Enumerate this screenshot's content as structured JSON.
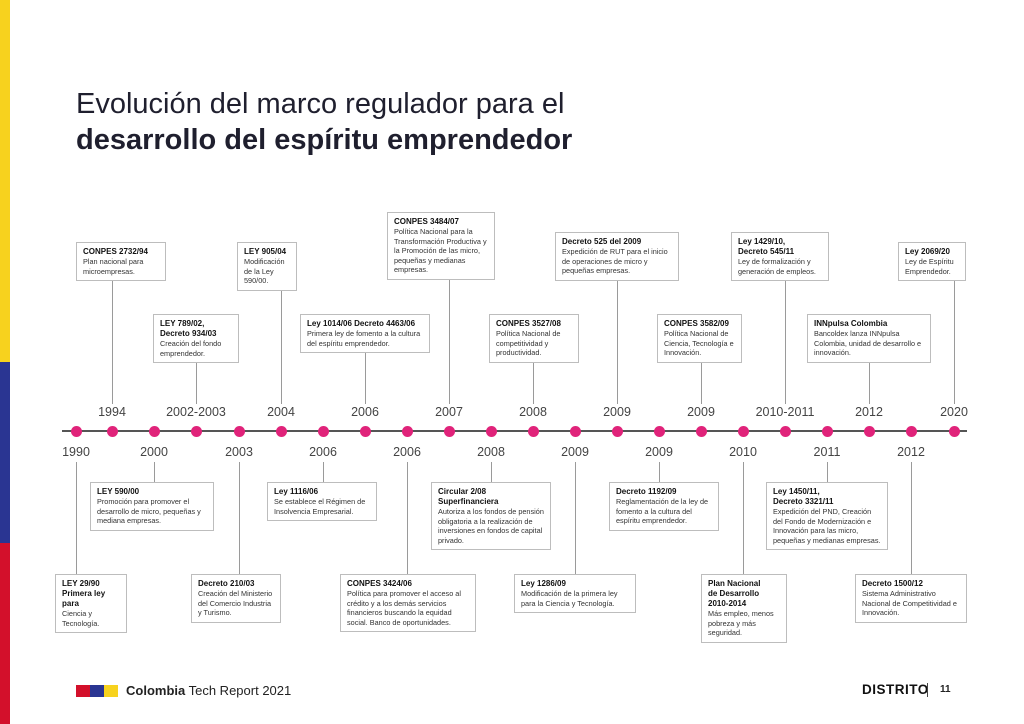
{
  "title": {
    "line1": "Evolución del marco regulador para el",
    "line2": "desarrollo del espíritu emprendedor"
  },
  "years_above": [
    "1994",
    "2002-2003",
    "2004",
    "2006",
    "2007",
    "2008",
    "2009",
    "2009",
    "2010-2011",
    "2012",
    "2020"
  ],
  "years_below": [
    "1990",
    "2000",
    "2003",
    "2006",
    "2006",
    "2008",
    "2009",
    "2009",
    "2010",
    "2011",
    "2012"
  ],
  "cards_above": [
    {
      "heading": "CONPES 2732/94",
      "text": "Plan nacional para microempresas."
    },
    {
      "heading": "LEY 789/02,\nDecreto 934/03",
      "text": "Creación del fondo emprendedor."
    },
    {
      "heading": "LEY 905/04",
      "text": "Modificación de la Ley 590/00."
    },
    {
      "heading": "Ley 1014/06 Decreto 4463/06",
      "text": "Primera ley de fomento a la cultura del espíritu emprendedor."
    },
    {
      "heading": "CONPES 3484/07",
      "text": "Política Nacional para la Transformación Productiva y la Promoción de las micro, pequeñas y medianas empresas."
    },
    {
      "heading": "CONPES 3527/08",
      "text": "Política Nacional de competitividad y productividad."
    },
    {
      "heading": "Decreto 525 del 2009",
      "text": "Expedición de RUT para el inicio de operaciones de micro y pequeñas empresas."
    },
    {
      "heading": "CONPES 3582/09",
      "text": "Política Nacional de Ciencia, Tecnología e Innovación."
    },
    {
      "heading": "Ley 1429/10,\nDecreto 545/11",
      "text": "Ley de formalización y generación de empleos."
    },
    {
      "heading": "INNpulsa Colombia",
      "text": "Bancoldex lanza INNpulsa Colombia, unidad de desarrollo e innovación."
    },
    {
      "heading": "Ley 2069/20",
      "text": "Ley de Espíritu Emprendedor."
    }
  ],
  "cards_below": [
    {
      "heading": "LEY 29/90\nPrimera ley para",
      "text": "Ciencia y Tecnología."
    },
    {
      "heading": "LEY 590/00",
      "text": "Promoción para promover el desarrollo de micro, pequeñas y mediana empresas."
    },
    {
      "heading": "Decreto 210/03",
      "text": "Creación del Ministerio del Comercio Industria y Turismo."
    },
    {
      "heading": "Ley 1116/06",
      "text": "Se establece el Régimen de Insolvencia Empresarial."
    },
    {
      "heading": "CONPES 3424/06",
      "text": "Política para promover el acceso al crédito y a los demás servicios financieros buscando la equidad social. Banco de oportunidades."
    },
    {
      "heading": "Circular 2/08\nSuperfinanciera",
      "text": "Autoriza a los fondos de pensión obligatoria a la realización de inversiones en fondos de capital privado."
    },
    {
      "heading": "Ley 1286/09",
      "text": "Modificación de la primera ley para la Ciencia y Tecnología."
    },
    {
      "heading": "Decreto 1192/09",
      "text": "Reglamentación de la ley de fomento a la cultura del espíritu emprendedor."
    },
    {
      "heading": "Plan Nacional\nde Desarrollo\n2010-2014",
      "text": "Más empleo, menos pobreza y más seguridad."
    },
    {
      "heading": "Ley 1450/11,\nDecreto 3321/11",
      "text": "Expedición del PND, Creación del Fondo de Modernización e Innovación para las micro, pequeñas y medianas empresas."
    },
    {
      "heading": "Decreto 1500/12",
      "text": "Sistema Administrativo Nacional de Competitividad e Innovación."
    }
  ],
  "footer": {
    "brand_bold": "Colombia",
    "brand_rest": " Tech Report 2021",
    "logo": "DISTRITO",
    "page_number": "11"
  },
  "colors": {
    "dot": "#e0237a",
    "flag_yellow": "#f7d21e",
    "flag_blue": "#2a3592",
    "flag_red": "#d3102b"
  }
}
